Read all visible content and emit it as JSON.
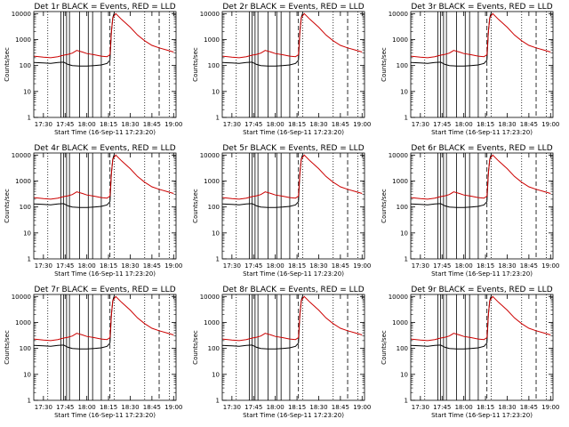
{
  "chart_data": [
    {
      "type": "line",
      "title": "Det 1r  BLACK = Events, RED = LLD"
    },
    {
      "type": "line",
      "title": "Det 2r  BLACK = Events, RED = LLD"
    },
    {
      "type": "line",
      "title": "Det 3r  BLACK = Events, RED = LLD"
    },
    {
      "type": "line",
      "title": "Det 4r  BLACK = Events, RED = LLD"
    },
    {
      "type": "line",
      "title": "Det 5r  BLACK = Events, RED = LLD"
    },
    {
      "type": "line",
      "title": "Det 6r  BLACK = Events, RED = LLD"
    },
    {
      "type": "line",
      "title": "Det 7r  BLACK = Events, RED = LLD"
    },
    {
      "type": "line",
      "title": "Det 8r  BLACK = Events, RED = LLD"
    },
    {
      "type": "line",
      "title": "Det 9r  BLACK = Events, RED = LLD"
    }
  ],
  "shared": {
    "xlabel": "Start Time (16-Sep-11 17:23:20)",
    "ylabel": "Counts/sec",
    "xticks": [
      {
        "label": "17:30",
        "value": "17:30"
      },
      {
        "label": "17:45",
        "value": "17:45"
      },
      {
        "label": "18:00",
        "value": "18:00"
      },
      {
        "label": "18:15",
        "value": "18:15"
      },
      {
        "label": "18:30",
        "value": "18:30"
      },
      {
        "label": "18:45",
        "value": "18:45"
      },
      {
        "label": "19:00",
        "value": "19:00"
      }
    ],
    "yticks": [
      {
        "label": "1",
        "value": 1
      },
      {
        "label": "10",
        "value": 10
      },
      {
        "label": "100",
        "value": 100
      },
      {
        "label": "1000",
        "value": 1000
      },
      {
        "label": "10000",
        "value": 10000
      }
    ],
    "xlim": [
      "17:23:20",
      "19:01:40"
    ],
    "ylim": [
      1,
      12000
    ],
    "yscale": "log",
    "colors": {
      "events": "#000000",
      "lld": "#cc0000"
    },
    "series": [
      {
        "key": "events",
        "color": "#000000",
        "x": [
          "17:23:20",
          "17:30",
          "17:35",
          "17:40",
          "17:44",
          "17:47",
          "17:50",
          "17:55",
          "18:00",
          "18:05",
          "18:10",
          "18:14",
          "18:16",
          "18:17",
          "18:18",
          "18:19"
        ],
        "y": [
          130,
          125,
          120,
          130,
          135,
          110,
          100,
          95,
          95,
          100,
          105,
          120,
          160,
          2000,
          7000,
          11000
        ]
      },
      {
        "key": "lld",
        "color": "#cc0000",
        "x": [
          "17:23:20",
          "17:30",
          "17:35",
          "17:40",
          "17:44",
          "17:47",
          "17:50",
          "17:53",
          "17:57",
          "18:00",
          "18:05",
          "18:10",
          "18:14",
          "18:16",
          "18:17",
          "18:18",
          "18:20",
          "18:24",
          "18:30",
          "18:35",
          "18:40",
          "18:45",
          "18:50",
          "18:55",
          "19:00"
        ],
        "y": [
          230,
          210,
          200,
          220,
          250,
          270,
          300,
          380,
          330,
          290,
          260,
          230,
          220,
          260,
          2000,
          7000,
          10000,
          6000,
          3000,
          1500,
          900,
          600,
          480,
          400,
          330
        ]
      }
    ],
    "vlines": [
      {
        "x": "17:33",
        "style": "dotted"
      },
      {
        "x": "17:42",
        "style": "solid"
      },
      {
        "x": "17:44",
        "style": "solid"
      },
      {
        "x": "17:46",
        "style": "solid"
      },
      {
        "x": "17:48",
        "style": "solid"
      },
      {
        "x": "17:55",
        "style": "solid"
      },
      {
        "x": "18:01",
        "style": "solid"
      },
      {
        "x": "18:04",
        "style": "solid"
      },
      {
        "x": "18:10",
        "style": "solid"
      },
      {
        "x": "18:16",
        "style": "dashed"
      },
      {
        "x": "18:19",
        "style": "dotted"
      },
      {
        "x": "18:40",
        "style": "dotted"
      },
      {
        "x": "18:50",
        "style": "dashed"
      },
      {
        "x": "18:57",
        "style": "dotted"
      }
    ]
  }
}
